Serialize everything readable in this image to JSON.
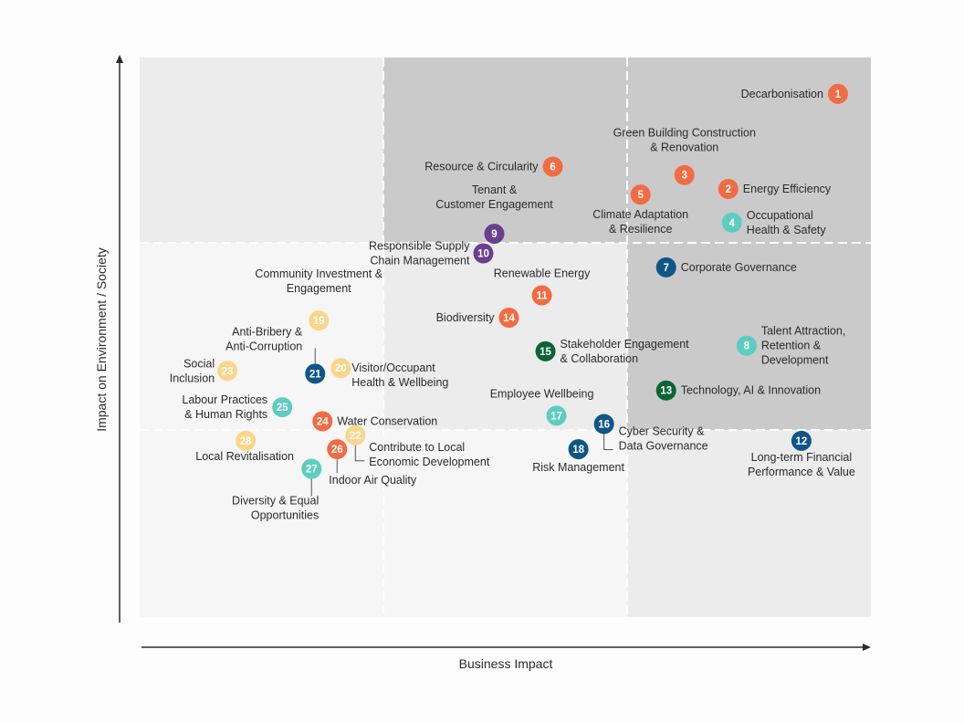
{
  "chart_data": {
    "type": "scatter",
    "title": "",
    "xlabel": "Business Impact",
    "ylabel": "Impact on Environment / Society",
    "xlim": [
      0,
      100
    ],
    "ylim": [
      0,
      100
    ],
    "colors": {
      "orange": "#f26b43",
      "teal": "#5ccdc0",
      "navy": "#0f5686",
      "green": "#0a6536",
      "purple": "#6a3f8f",
      "yellow": "#fbd58a"
    },
    "points": [
      {
        "id": "1",
        "label": [
          "Decarbonisation"
        ],
        "x": 95.5,
        "y": 93.5,
        "color": "orange"
      },
      {
        "id": "2",
        "label": [
          "Energy Efficiency"
        ],
        "x": 80.5,
        "y": 76.5,
        "color": "orange"
      },
      {
        "id": "3",
        "label": [
          "Green Building Construction",
          "& Renovation"
        ],
        "x": 74.5,
        "y": 79.0,
        "color": "orange"
      },
      {
        "id": "4",
        "label": [
          "Occupational",
          "Health & Safety"
        ],
        "x": 81.0,
        "y": 70.5,
        "color": "teal"
      },
      {
        "id": "5",
        "label": [
          "Climate Adaptation",
          "& Resilience"
        ],
        "x": 68.5,
        "y": 75.5,
        "color": "orange"
      },
      {
        "id": "6",
        "label": [
          "Resource & Circularity"
        ],
        "x": 56.5,
        "y": 80.5,
        "color": "orange"
      },
      {
        "id": "7",
        "label": [
          "Corporate Governance"
        ],
        "x": 72.0,
        "y": 62.5,
        "color": "navy"
      },
      {
        "id": "8",
        "label": [
          "Talent Attraction,",
          "Retention &",
          "Development"
        ],
        "x": 83.0,
        "y": 48.5,
        "color": "teal"
      },
      {
        "id": "9",
        "label": [
          "Tenant &",
          "Customer Engagement"
        ],
        "x": 48.5,
        "y": 68.5,
        "color": "purple"
      },
      {
        "id": "10",
        "label": [
          "Responsible Supply",
          "Chain Management"
        ],
        "x": 47.0,
        "y": 65.0,
        "color": "purple"
      },
      {
        "id": "11",
        "label": [
          "Renewable Energy"
        ],
        "x": 55.0,
        "y": 57.5,
        "color": "orange"
      },
      {
        "id": "12",
        "label": [
          "Long-term Financial",
          "Performance & Value"
        ],
        "x": 90.5,
        "y": 31.5,
        "color": "navy"
      },
      {
        "id": "13",
        "label": [
          "Technology, AI & Innovation"
        ],
        "x": 72.0,
        "y": 40.5,
        "color": "green"
      },
      {
        "id": "14",
        "label": [
          "Biodiversity"
        ],
        "x": 50.5,
        "y": 53.5,
        "color": "orange"
      },
      {
        "id": "15",
        "label": [
          "Stakeholder Engagement",
          "& Collaboration"
        ],
        "x": 55.5,
        "y": 47.5,
        "color": "green"
      },
      {
        "id": "16",
        "label": [
          "Cyber Security &",
          "Data Governance"
        ],
        "x": 63.5,
        "y": 34.5,
        "color": "navy"
      },
      {
        "id": "17",
        "label": [
          "Employee Wellbeing"
        ],
        "x": 57.0,
        "y": 36.0,
        "color": "teal"
      },
      {
        "id": "18",
        "label": [
          "Risk Management"
        ],
        "x": 60.0,
        "y": 30.0,
        "color": "navy"
      },
      {
        "id": "19",
        "label": [
          "Community Investment &",
          "Engagement"
        ],
        "x": 24.5,
        "y": 53.0,
        "color": "yellow"
      },
      {
        "id": "20",
        "label": [
          "Visitor/Occupant",
          "Health & Wellbeing"
        ],
        "x": 27.5,
        "y": 44.5,
        "color": "yellow"
      },
      {
        "id": "21",
        "label": [
          "Anti-Bribery &",
          "Anti-Corruption"
        ],
        "x": 24.0,
        "y": 43.5,
        "color": "navy"
      },
      {
        "id": "22",
        "label": [
          "Contribute to Local",
          "Economic Development"
        ],
        "x": 29.5,
        "y": 32.5,
        "color": "yellow"
      },
      {
        "id": "23",
        "label": [
          "Social",
          "Inclusion"
        ],
        "x": 12.0,
        "y": 44.0,
        "color": "yellow"
      },
      {
        "id": "24",
        "label": [
          "Water Conservation"
        ],
        "x": 25.0,
        "y": 35.0,
        "color": "orange"
      },
      {
        "id": "25",
        "label": [
          "Labour Practices",
          "& Human Rights"
        ],
        "x": 19.5,
        "y": 37.5,
        "color": "teal"
      },
      {
        "id": "26",
        "label": [
          "Indoor Air Quality"
        ],
        "x": 27.0,
        "y": 30.0,
        "color": "orange"
      },
      {
        "id": "27",
        "label": [
          "Diversity & Equal",
          "Opportunities"
        ],
        "x": 23.5,
        "y": 26.5,
        "color": "teal"
      },
      {
        "id": "28",
        "label": [
          "Local Revitalisation"
        ],
        "x": 14.5,
        "y": 31.5,
        "color": "yellow"
      }
    ]
  }
}
